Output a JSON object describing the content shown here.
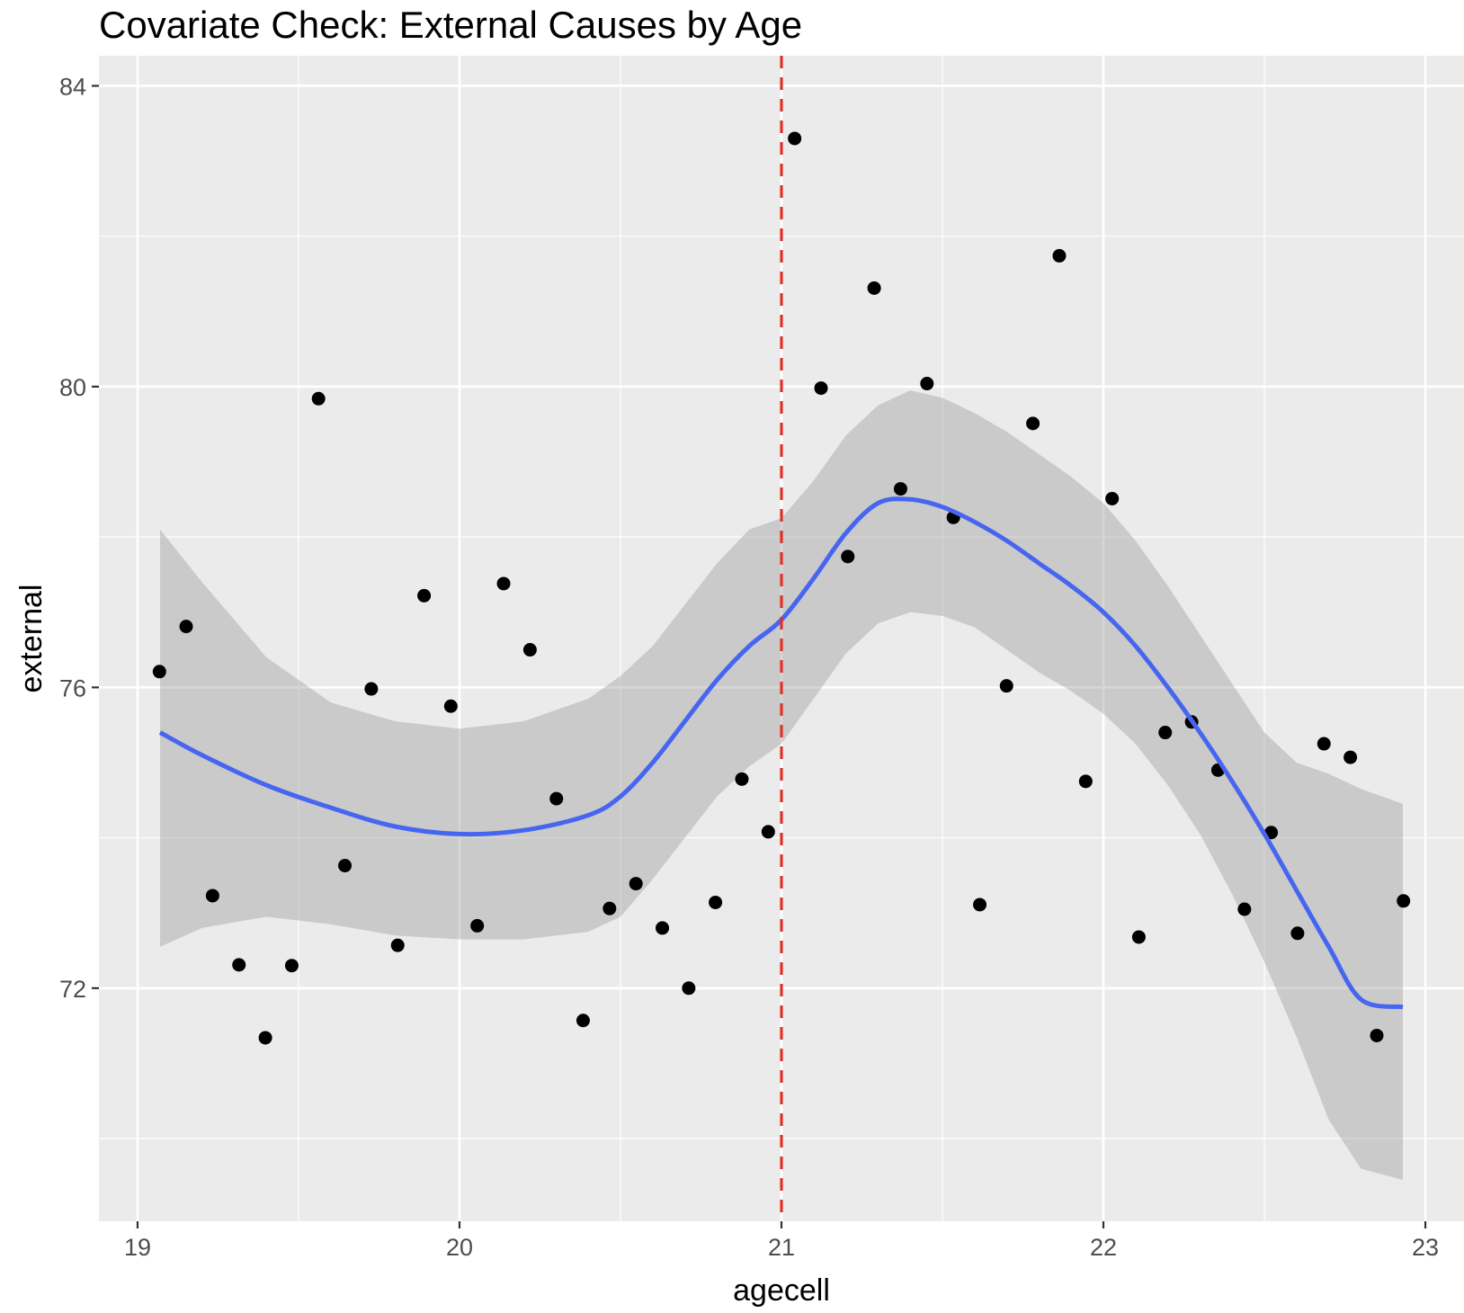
{
  "chart_data": {
    "type": "scatter",
    "title": "Covariate Check: External Causes by Age",
    "xlabel": "agecell",
    "ylabel": "external",
    "xlim": [
      18.88,
      23.12
    ],
    "ylim": [
      68.9,
      84.4
    ],
    "x_ticks": [
      19,
      20,
      21,
      22,
      23
    ],
    "y_ticks": [
      72,
      76,
      80,
      84
    ],
    "y_minor": [
      70,
      74,
      78,
      82
    ],
    "x_minor": [
      19.5,
      20.5,
      21.5,
      22.5
    ],
    "grid": true,
    "legend": "none",
    "cutoff": 21,
    "colors": {
      "panel": "#ebebeb",
      "grid": "#ffffff",
      "points": "#000000",
      "smooth": "#4766f0",
      "band": "#cccccc",
      "cutoff": "#e0322a"
    },
    "series": [
      {
        "type": "points",
        "x": [
          19.068,
          19.151,
          19.233,
          19.315,
          19.397,
          19.479,
          19.562,
          19.644,
          19.726,
          19.808,
          19.89,
          19.973,
          20.055,
          20.137,
          20.219,
          20.301,
          20.384,
          20.466,
          20.548,
          20.63,
          20.712,
          20.795,
          20.877,
          20.959,
          21.041,
          21.123,
          21.206,
          21.288,
          21.37,
          21.452,
          21.534,
          21.616,
          21.699,
          21.781,
          21.863,
          21.945,
          22.027,
          22.11,
          22.192,
          22.274,
          22.356,
          22.438,
          22.521,
          22.603,
          22.685,
          22.767,
          22.849,
          22.932
        ],
        "y": [
          76.21,
          76.81,
          73.23,
          72.31,
          71.34,
          72.3,
          79.84,
          73.63,
          75.98,
          72.57,
          77.22,
          75.75,
          72.83,
          77.38,
          76.5,
          74.52,
          71.57,
          73.06,
          73.39,
          72.8,
          72.0,
          73.14,
          74.78,
          74.08,
          83.3,
          79.98,
          77.74,
          81.31,
          78.64,
          80.04,
          78.26,
          73.11,
          76.02,
          79.51,
          81.74,
          74.75,
          78.51,
          72.68,
          75.4,
          75.54,
          74.9,
          73.05,
          74.07,
          72.73,
          75.25,
          75.07,
          71.37,
          73.16
        ]
      },
      {
        "type": "smooth",
        "x": [
          19.07,
          19.2,
          19.4,
          19.6,
          19.8,
          20.0,
          20.2,
          20.4,
          20.5,
          20.6,
          20.7,
          20.8,
          20.9,
          21.0,
          21.1,
          21.2,
          21.3,
          21.4,
          21.5,
          21.6,
          21.7,
          21.8,
          21.9,
          22.0,
          22.1,
          22.2,
          22.3,
          22.4,
          22.5,
          22.6,
          22.7,
          22.8,
          22.93
        ],
        "y": [
          75.4,
          75.1,
          74.7,
          74.4,
          74.15,
          74.05,
          74.1,
          74.3,
          74.55,
          75.0,
          75.55,
          76.1,
          76.55,
          76.9,
          77.45,
          78.05,
          78.45,
          78.5,
          78.4,
          78.2,
          77.95,
          77.65,
          77.35,
          77.0,
          76.55,
          76.0,
          75.4,
          74.75,
          74.05,
          73.3,
          72.55,
          71.85,
          71.75
        ]
      },
      {
        "type": "ci_band",
        "x": [
          19.07,
          19.2,
          19.4,
          19.6,
          19.8,
          20.0,
          20.2,
          20.4,
          20.5,
          20.6,
          20.7,
          20.8,
          20.9,
          21.0,
          21.1,
          21.2,
          21.3,
          21.4,
          21.5,
          21.6,
          21.7,
          21.8,
          21.9,
          22.0,
          22.1,
          22.2,
          22.3,
          22.4,
          22.5,
          22.6,
          22.7,
          22.8,
          22.93
        ],
        "lower": [
          72.55,
          72.8,
          72.95,
          72.85,
          72.7,
          72.65,
          72.65,
          72.75,
          72.95,
          73.45,
          74.0,
          74.55,
          74.95,
          75.25,
          75.85,
          76.45,
          76.85,
          77.0,
          76.95,
          76.8,
          76.5,
          76.2,
          75.95,
          75.65,
          75.25,
          74.7,
          74.05,
          73.25,
          72.35,
          71.35,
          70.25,
          69.6,
          69.45
        ],
        "upper": [
          78.1,
          77.4,
          76.4,
          75.8,
          75.55,
          75.45,
          75.55,
          75.85,
          76.15,
          76.55,
          77.1,
          77.65,
          78.1,
          78.25,
          78.75,
          79.35,
          79.75,
          79.95,
          79.85,
          79.65,
          79.4,
          79.1,
          78.8,
          78.45,
          77.95,
          77.35,
          76.7,
          76.05,
          75.4,
          75.0,
          74.85,
          74.65,
          74.45
        ]
      }
    ]
  }
}
